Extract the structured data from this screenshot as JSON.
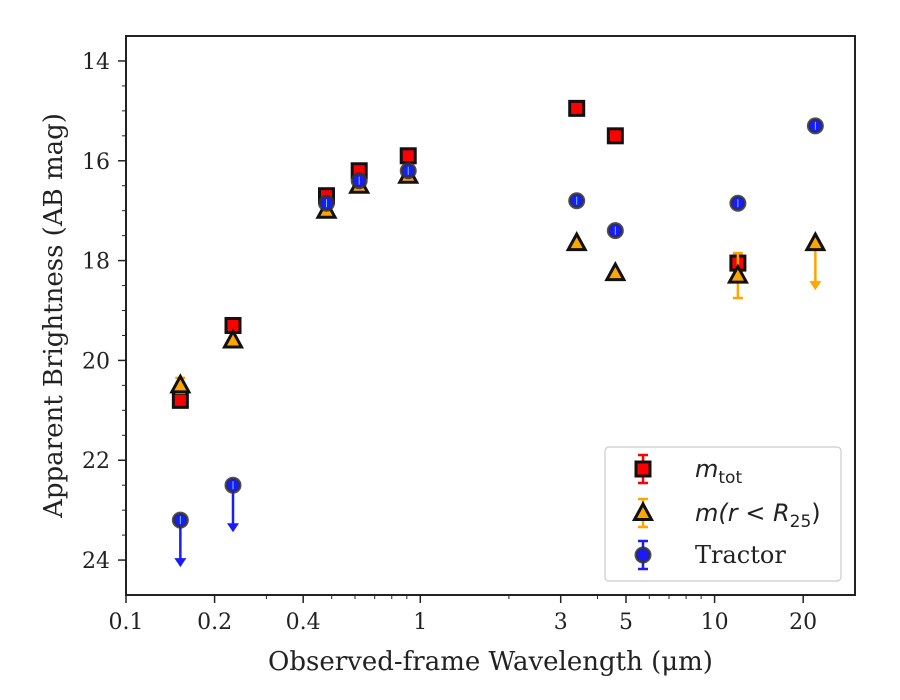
{
  "chart_data": {
    "type": "scatter",
    "title": "",
    "xlabel": "Observed-frame Wavelength (μm)",
    "ylabel": "Apparent Brightness (AB mag)",
    "xscale": "log",
    "xlim": [
      0.1,
      30
    ],
    "ylim": [
      24.7,
      13.5
    ],
    "y_inverted": true,
    "x_ticks": [
      0.1,
      0.2,
      0.4,
      1,
      3,
      5,
      10,
      20
    ],
    "x_tick_labels": [
      "0.1",
      "0.2",
      "0.4",
      "1",
      "3",
      "5",
      "10",
      "20"
    ],
    "y_ticks": [
      14,
      16,
      18,
      20,
      22,
      24
    ],
    "y_tick_labels": [
      "14",
      "16",
      "18",
      "20",
      "22",
      "24"
    ],
    "legend_position": "lower-right",
    "series": [
      {
        "name": "m_tot",
        "legend_label": {
          "main": "m",
          "sub": "tot"
        },
        "marker": "square",
        "color": "#ff0000",
        "edge_color": "#111111",
        "points": [
          {
            "x": 0.153,
            "y": 20.8
          },
          {
            "x": 0.231,
            "y": 19.3
          },
          {
            "x": 0.48,
            "y": 16.7
          },
          {
            "x": 0.62,
            "y": 16.2
          },
          {
            "x": 0.91,
            "y": 15.9
          },
          {
            "x": 3.4,
            "y": 14.95
          },
          {
            "x": 4.6,
            "y": 15.5
          },
          {
            "x": 12.0,
            "y": 18.05,
            "yerr": 0.15
          }
        ]
      },
      {
        "name": "m(r < R25)",
        "legend_label": {
          "main": "m(r < R",
          "sub": "25",
          "tail": ")"
        },
        "marker": "triangle",
        "color": "#ffa500",
        "edge_color": "#111111",
        "points": [
          {
            "x": 0.153,
            "y": 20.5,
            "yerr": 0.15
          },
          {
            "x": 0.231,
            "y": 19.6
          },
          {
            "x": 0.48,
            "y": 17.0
          },
          {
            "x": 0.62,
            "y": 16.5
          },
          {
            "x": 0.91,
            "y": 16.3
          },
          {
            "x": 3.4,
            "y": 17.65
          },
          {
            "x": 4.6,
            "y": 18.25
          },
          {
            "x": 12.0,
            "y": 18.3,
            "yerr": 0.45
          },
          {
            "x": 22.0,
            "y": 17.65,
            "upper_limit": true
          }
        ]
      },
      {
        "name": "Tractor",
        "legend_label": {
          "main": "Tractor"
        },
        "marker": "circle",
        "color": "#1a1aff",
        "edge_color": "#333333",
        "points": [
          {
            "x": 0.153,
            "y": 23.2,
            "upper_limit": true
          },
          {
            "x": 0.231,
            "y": 22.5,
            "upper_limit": true
          },
          {
            "x": 0.48,
            "y": 16.85
          },
          {
            "x": 0.62,
            "y": 16.4
          },
          {
            "x": 0.91,
            "y": 16.2
          },
          {
            "x": 3.4,
            "y": 16.8
          },
          {
            "x": 4.6,
            "y": 17.4
          },
          {
            "x": 12.0,
            "y": 16.85
          },
          {
            "x": 22.0,
            "y": 15.3
          }
        ]
      }
    ]
  }
}
